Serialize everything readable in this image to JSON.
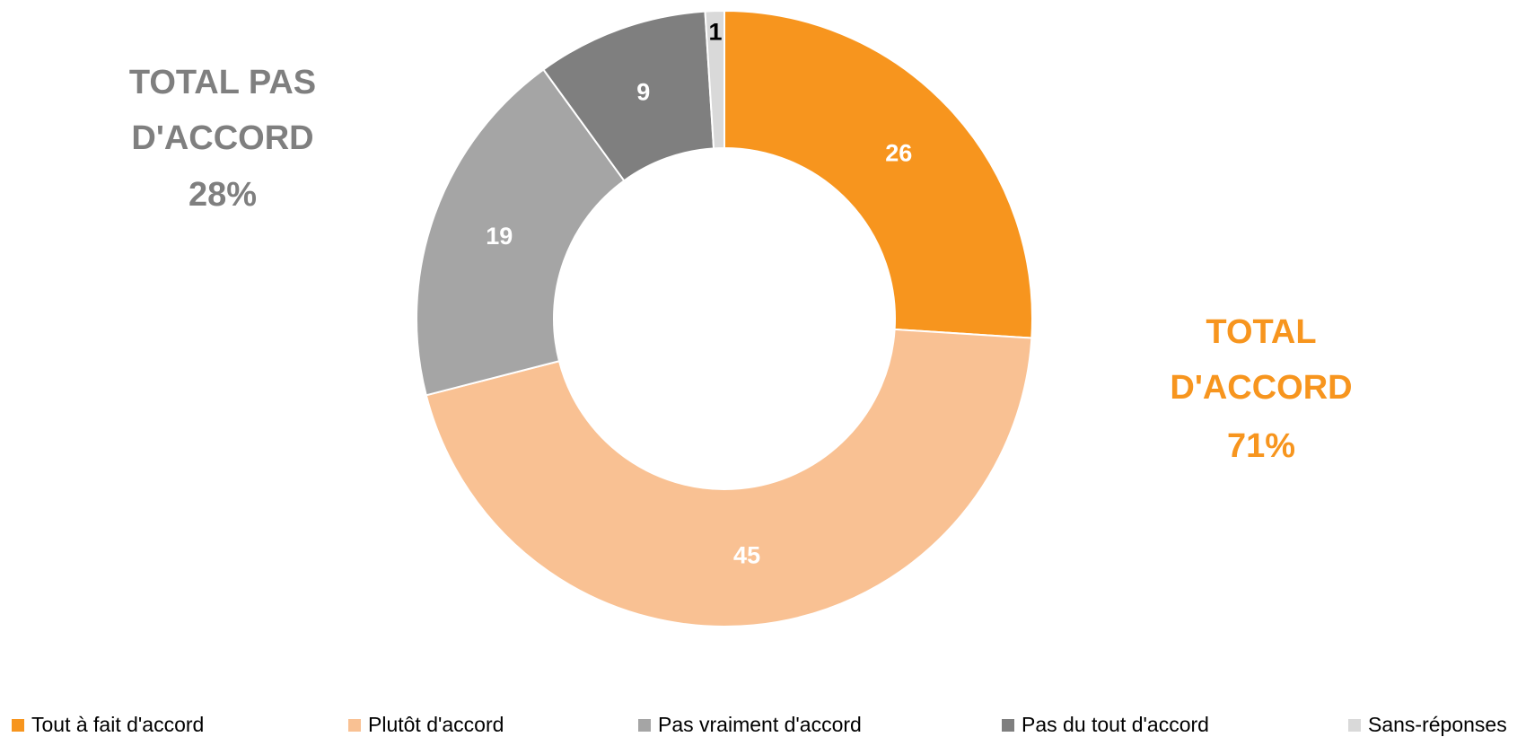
{
  "chart_data": {
    "type": "donut",
    "categories": [
      "Tout à fait d'accord",
      "Plutôt d'accord",
      "Pas vraiment d'accord",
      "Pas du tout d'accord",
      "Sans-réponses"
    ],
    "values": [
      26,
      45,
      19,
      9,
      1
    ],
    "colors": [
      "#f7951e",
      "#f9c193",
      "#a5a5a5",
      "#7f7f7f",
      "#d9d9d9"
    ],
    "label_colors": [
      "#ffffff",
      "#ffffff",
      "#ffffff",
      "#ffffff",
      "#000000"
    ],
    "legend": "bottom",
    "annotations": [
      {
        "lines": [
          "TOTAL PAS",
          "D'ACCORD",
          "28%"
        ],
        "color": "#7f7f7f"
      },
      {
        "lines": [
          "TOTAL",
          "D'ACCORD",
          "71%"
        ],
        "color": "#f7951e"
      }
    ]
  }
}
